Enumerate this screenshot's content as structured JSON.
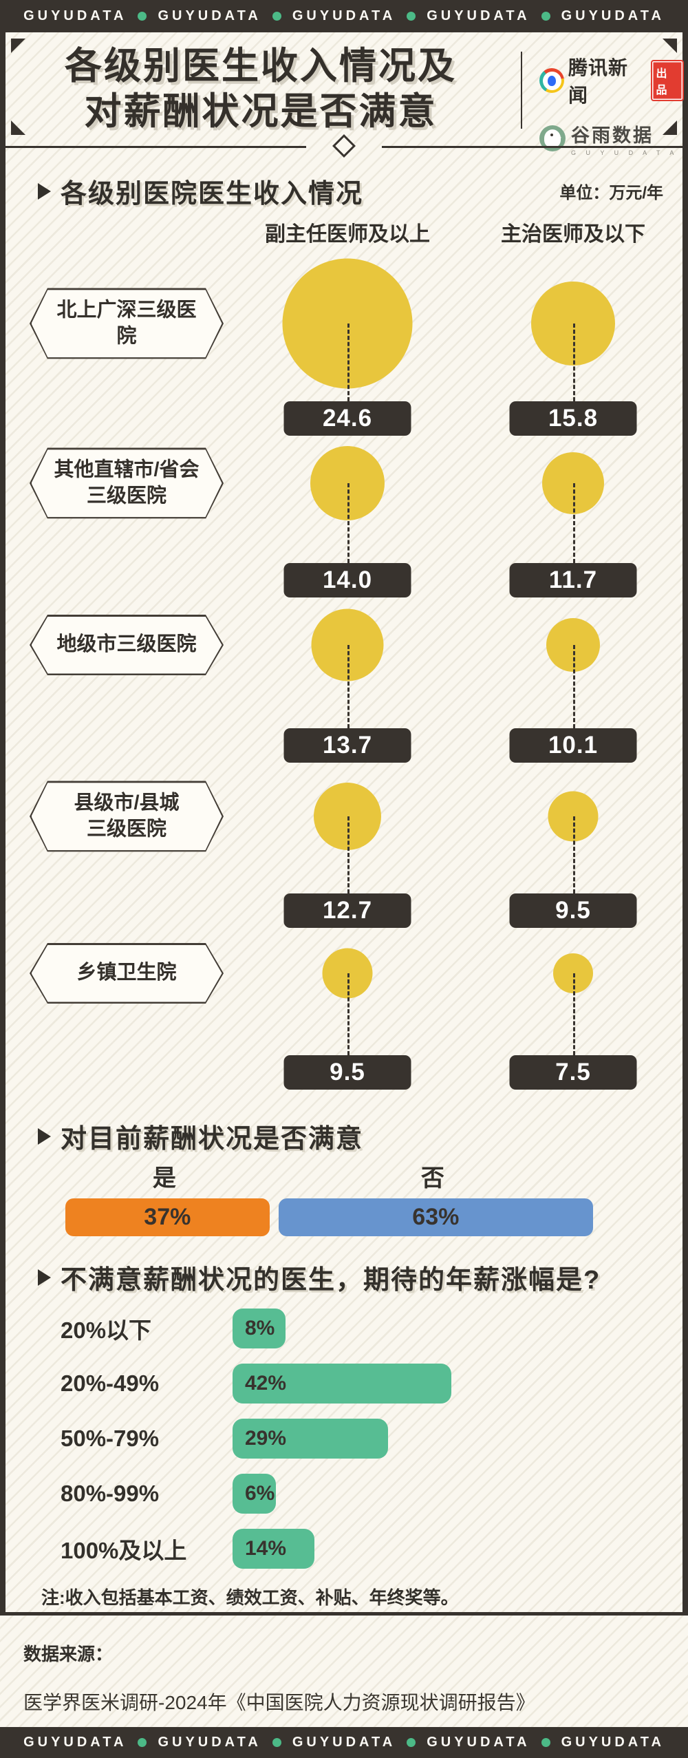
{
  "brand": {
    "name": "GUYUDATA"
  },
  "header": {
    "title_line1": "各级别医生收入情况及",
    "title_line2": "对薪酬状况是否满意",
    "tencent_logo_text": "腾讯新闻",
    "tencent_badge": "出品",
    "guyu_logo_text": "谷雨数据",
    "guyu_logo_sub": "G U Y U D A T A"
  },
  "section1": {
    "title": "各级别医院医生收入情况",
    "unit": "单位：万元/年",
    "columns": [
      "副主任医师及以上",
      "主治医师及以下"
    ],
    "rows": [
      {
        "label": "北上广深三级医院",
        "v1": "24.6",
        "v2": "15.8"
      },
      {
        "label": "其他直辖市/省会\n三级医院",
        "v1": "14.0",
        "v2": "11.7"
      },
      {
        "label": "地级市三级医院",
        "v1": "13.7",
        "v2": "10.1"
      },
      {
        "label": "县级市/县城\n三级医院",
        "v1": "12.7",
        "v2": "9.5"
      },
      {
        "label": "乡镇卫生院",
        "v1": "9.5",
        "v2": "7.5"
      }
    ]
  },
  "section2": {
    "title": "对目前薪酬状况是否满意",
    "yes_label": "是",
    "no_label": "否",
    "yes_pct": "37%",
    "no_pct": "63%"
  },
  "section3": {
    "title": "不满意薪酬状况的医生，期待的年薪涨幅是?",
    "rows": [
      {
        "label": "20%以下",
        "value_label": "8%"
      },
      {
        "label": "20%-49%",
        "value_label": "42%"
      },
      {
        "label": "50%-79%",
        "value_label": "29%"
      },
      {
        "label": "80%-99%",
        "value_label": "6%"
      },
      {
        "label": "100%及以上",
        "value_label": "14%"
      }
    ]
  },
  "note": {
    "prefix": "注:",
    "text": "收入包括基本工资、绩效工资、补贴、年终奖等。"
  },
  "footer": {
    "source_heading": "数据来源：",
    "source_text": "医学界医米调研-2024年《中国医院人力资源现状调研报告》"
  },
  "colors": {
    "dark": "#38332e",
    "yellow": "#e8c63d",
    "orange": "#ee8220",
    "blue": "#6794ce",
    "green": "#57bd93",
    "dot_green": "#4cba87",
    "background": "#faf7ef",
    "badge_red": "#e23c30"
  },
  "chart_data": [
    {
      "type": "scatter",
      "subtype": "bubble-matrix",
      "title": "各级别医院医生收入情况",
      "unit": "万元/年",
      "categories": [
        "北上广深三级医院",
        "其他直辖市/省会三级医院",
        "地级市三级医院",
        "县级市/县城三级医院",
        "乡镇卫生院"
      ],
      "series": [
        {
          "name": "副主任医师及以上",
          "values": [
            24.6,
            14.0,
            13.7,
            12.7,
            9.5
          ]
        },
        {
          "name": "主治医师及以下",
          "values": [
            15.8,
            11.7,
            10.1,
            9.5,
            7.5
          ]
        }
      ],
      "legend_position": "top",
      "grid": false
    },
    {
      "type": "bar",
      "subtype": "horizontal-stacked",
      "title": "对目前薪酬状况是否满意",
      "categories": [
        "是",
        "否"
      ],
      "values": [
        37,
        63
      ],
      "unit": "%",
      "colors": [
        "#ee8220",
        "#6794ce"
      ],
      "xlim": [
        0,
        100
      ],
      "grid": false
    },
    {
      "type": "bar",
      "subtype": "horizontal",
      "title": "不满意薪酬状况的医生，期待的年薪涨幅是?",
      "categories": [
        "20%以下",
        "20%-49%",
        "50%-79%",
        "80%-99%",
        "100%及以上"
      ],
      "values": [
        8,
        42,
        29,
        6,
        14
      ],
      "unit": "%",
      "color": "#57bd93",
      "xlim": [
        0,
        50
      ],
      "grid": false
    }
  ]
}
